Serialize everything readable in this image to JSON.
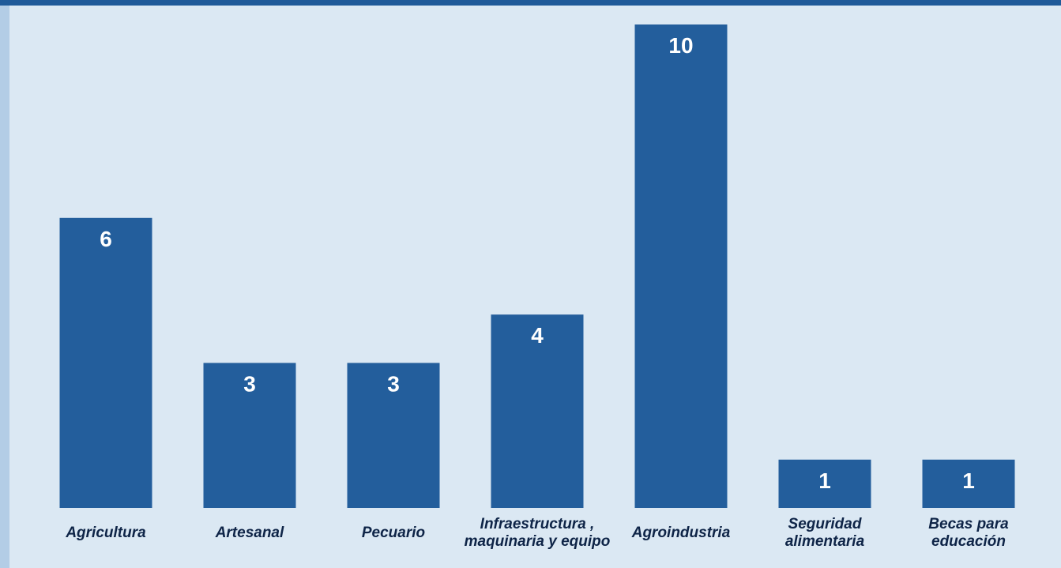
{
  "chart_data": {
    "type": "bar",
    "categories": [
      [
        "Agricultura"
      ],
      [
        "Artesanal"
      ],
      [
        "Pecuario"
      ],
      [
        "Infraestructura ,",
        "maquinaria y equipo"
      ],
      [
        "Agroindustria"
      ],
      [
        "Seguridad",
        "alimentaria"
      ],
      [
        "Becas para",
        "educación"
      ]
    ],
    "values": [
      6,
      3,
      3,
      4,
      10,
      1,
      1
    ],
    "title": "",
    "xlabel": "",
    "ylabel": "",
    "ylim": [
      0,
      10
    ],
    "grid": false,
    "legend": "none",
    "colors": {
      "bar": "#235e9c",
      "bar_label": "#ffffff",
      "category_label": "#0e2447",
      "background": "#dbe8f3",
      "frame_top": "#1f5a99",
      "frame_left": "#b3cde6"
    }
  }
}
